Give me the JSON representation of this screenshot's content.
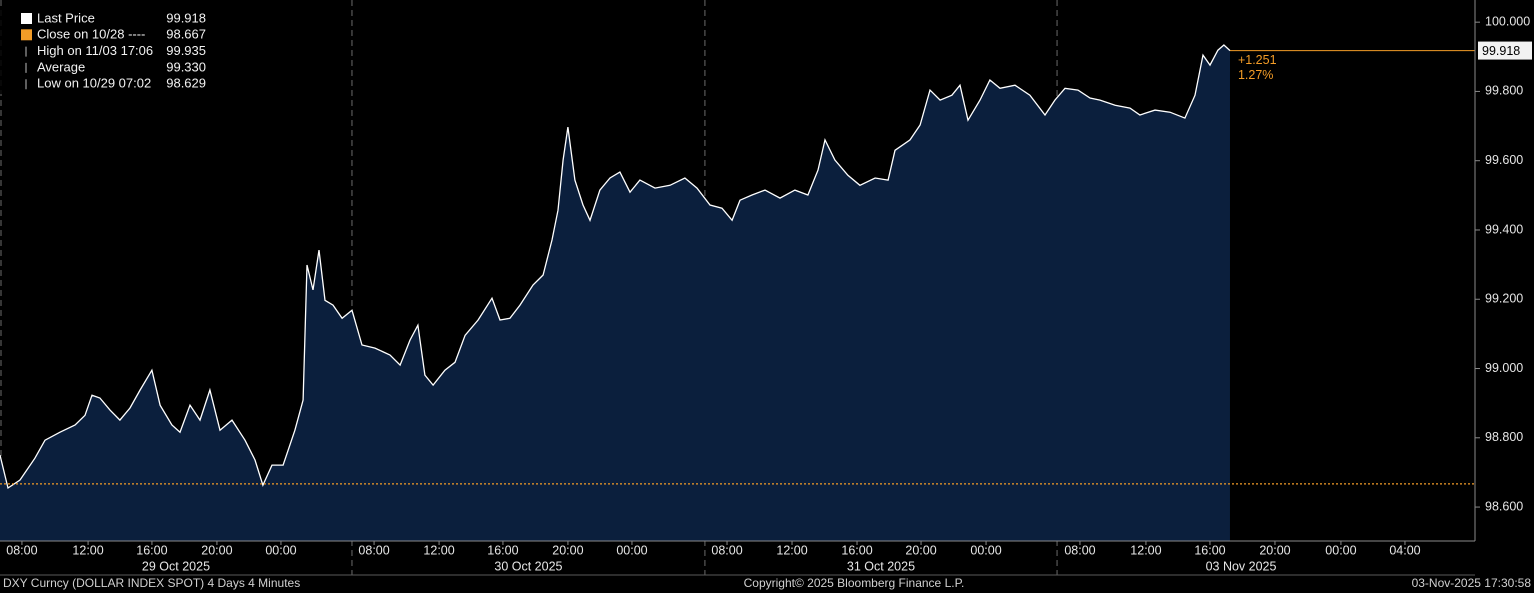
{
  "chart_data": {
    "type": "area",
    "legend": [
      {
        "label": "Last Price",
        "value": 99.918,
        "color": "#ffffff"
      },
      {
        "label": "Close on 10/28 ----",
        "value": 98.667,
        "color": "#f39c27"
      },
      {
        "label": "High on 11/03 17:06",
        "value": 99.935,
        "color": "#bbbbbb"
      },
      {
        "label": "Average",
        "value": 99.33,
        "value_label": "99.330",
        "color": "#bbbbbb"
      },
      {
        "label": "Low on 10/29 07:02",
        "value": 98.629,
        "color": "#bbbbbb"
      }
    ],
    "change_labels": [
      "+1.251",
      "1.27%"
    ],
    "x": [
      0,
      0.49,
      1.23,
      2.15,
      2.77,
      3.69,
      4.62,
      5.23,
      5.66,
      6.15,
      6.77,
      7.38,
      8.0,
      8.62,
      9.35,
      9.85,
      10.58,
      11.08,
      11.69,
      12.31,
      12.92,
      13.54,
      14.28,
      15.08,
      15.69,
      16.18,
      16.74,
      17.42,
      18.15,
      18.65,
      18.89,
      19.26,
      19.63,
      20.0,
      20.49,
      21.05,
      21.66,
      22.28,
      23.08,
      24.0,
      24.62,
      25.23,
      25.72,
      26.15,
      26.65,
      27.38,
      28.0,
      28.62,
      29.42,
      30.28,
      30.77,
      31.38,
      32.0,
      32.8,
      33.42,
      33.97,
      34.34,
      34.65,
      34.95,
      35.38,
      35.88,
      36.31,
      36.92,
      37.54,
      38.15,
      38.77,
      39.38,
      40.31,
      41.23,
      42.15,
      42.89,
      43.69,
      44.43,
      45.05,
      45.54,
      46.28,
      47.08,
      48.0,
      48.92,
      49.72,
      50.34,
      50.77,
      51.38,
      52.18,
      52.92,
      53.85,
      54.65,
      55.08,
      56.0,
      56.62,
      57.23,
      57.85,
      58.58,
      59.08,
      59.57,
      60.31,
      60.92,
      61.54,
      62.46,
      63.38,
      64.31,
      64.92,
      65.54,
      66.34,
      67.08,
      67.69,
      68.62,
      69.54,
      70.15,
      71.08,
      72.0,
      72.92,
      73.54,
      74.03,
      74.46,
      74.95,
      75.32,
      75.69
    ],
    "series": [
      {
        "name": "Last Price",
        "color": "#ffffff",
        "fill": "#0b1f3d",
        "values": [
          98.75,
          98.655,
          98.678,
          98.741,
          98.793,
          98.816,
          98.837,
          98.865,
          98.923,
          98.915,
          98.88,
          98.851,
          98.886,
          98.938,
          98.995,
          98.894,
          98.837,
          98.816,
          98.894,
          98.851,
          98.938,
          98.822,
          98.851,
          98.793,
          98.736,
          98.663,
          98.721,
          98.721,
          98.822,
          98.909,
          99.299,
          99.227,
          99.342,
          99.197,
          99.183,
          99.145,
          99.168,
          99.068,
          99.059,
          99.039,
          99.01,
          99.082,
          99.125,
          98.981,
          98.952,
          98.995,
          99.018,
          99.096,
          99.14,
          99.203,
          99.14,
          99.145,
          99.183,
          99.241,
          99.27,
          99.371,
          99.457,
          99.602,
          99.697,
          99.544,
          99.472,
          99.428,
          99.515,
          99.55,
          99.567,
          99.509,
          99.544,
          99.521,
          99.529,
          99.55,
          99.521,
          99.472,
          99.463,
          99.428,
          99.486,
          99.501,
          99.515,
          99.492,
          99.515,
          99.501,
          99.573,
          99.66,
          99.602,
          99.558,
          99.529,
          99.55,
          99.544,
          99.63,
          99.66,
          99.703,
          99.804,
          99.775,
          99.789,
          99.818,
          99.717,
          99.775,
          99.833,
          99.809,
          99.818,
          99.789,
          99.732,
          99.775,
          99.809,
          99.804,
          99.781,
          99.775,
          99.76,
          99.752,
          99.732,
          99.746,
          99.74,
          99.723,
          99.789,
          99.905,
          99.876,
          99.919,
          99.934,
          99.918
        ]
      }
    ],
    "xlim": [
      0,
      90.77
    ],
    "xticks": [
      {
        "value": 1.35,
        "label": "08:00"
      },
      {
        "value": 5.42,
        "label": "12:00"
      },
      {
        "value": 9.35,
        "label": "16:00"
      },
      {
        "value": 13.35,
        "label": "20:00"
      },
      {
        "value": 17.29,
        "label": "00:00"
      },
      {
        "value": 23.02,
        "label": "08:00"
      },
      {
        "value": 27.02,
        "label": "12:00"
      },
      {
        "value": 30.95,
        "label": "16:00"
      },
      {
        "value": 34.95,
        "label": "20:00"
      },
      {
        "value": 38.89,
        "label": "00:00"
      },
      {
        "value": 44.74,
        "label": "08:00"
      },
      {
        "value": 48.74,
        "label": "12:00"
      },
      {
        "value": 52.74,
        "label": "16:00"
      },
      {
        "value": 56.68,
        "label": "20:00"
      },
      {
        "value": 60.68,
        "label": "00:00"
      },
      {
        "value": 66.46,
        "label": "08:00"
      },
      {
        "value": 70.52,
        "label": "12:00"
      },
      {
        "value": 74.46,
        "label": "16:00"
      },
      {
        "value": 78.46,
        "label": "20:00"
      },
      {
        "value": 82.52,
        "label": "00:00"
      },
      {
        "value": 86.46,
        "label": "04:00"
      }
    ],
    "session_breaks": [
      21.66,
      43.38,
      65.05
    ],
    "dates": [
      "29 Oct 2025",
      "30 Oct 2025",
      "31 Oct 2025",
      "03 Nov 2025"
    ],
    "ylim": [
      98.502,
      100.064
    ],
    "yticks": [
      {
        "value": 98.6,
        "label": "98.600"
      },
      {
        "value": 98.8,
        "label": "98.800"
      },
      {
        "value": 99.0,
        "label": "99.000"
      },
      {
        "value": 99.2,
        "label": "99.200"
      },
      {
        "value": 99.4,
        "label": "99.400"
      },
      {
        "value": 99.6,
        "label": "99.600"
      },
      {
        "value": 99.8,
        "label": "99.800"
      },
      {
        "value": 100.0,
        "label": "100.000"
      }
    ],
    "footer": {
      "left": "DXY Curncy (DOLLAR INDEX SPOT) 4 Days 4 Minutes",
      "center": "Copyright© 2025 Bloomberg Finance L.P.",
      "right": "03-Nov-2025 17:30:58"
    }
  }
}
